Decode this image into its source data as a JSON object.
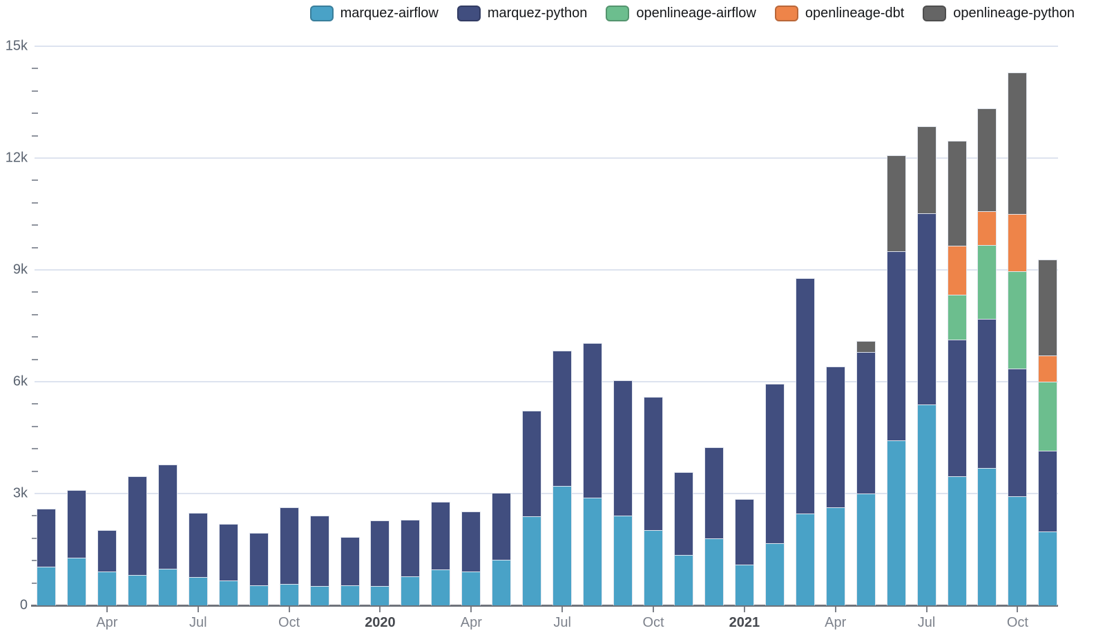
{
  "legend": {
    "items": [
      {
        "label": "marquez-airflow",
        "color": "#49a2c7"
      },
      {
        "label": "marquez-python",
        "color": "#414e7f"
      },
      {
        "label": "openlineage-airflow",
        "color": "#6cbe8e"
      },
      {
        "label": "openlineage-dbt",
        "color": "#ee8449"
      },
      {
        "label": "openlineage-python",
        "color": "#656565"
      }
    ]
  },
  "y_axis": {
    "labels": [
      {
        "text": "15k",
        "value": 15000
      },
      {
        "text": "12k",
        "value": 12000
      },
      {
        "text": "9k",
        "value": 9000
      },
      {
        "text": "6k",
        "value": 6000
      },
      {
        "text": "3k",
        "value": 3000
      },
      {
        "text": "0",
        "value": 0
      }
    ],
    "major_step": 3000,
    "minor_step": 600
  },
  "x_axis": {
    "ticks": [
      {
        "index": 2,
        "label": "Apr",
        "bold": false
      },
      {
        "index": 5,
        "label": "Jul",
        "bold": false
      },
      {
        "index": 8,
        "label": "Oct",
        "bold": false
      },
      {
        "index": 11,
        "label": "2020",
        "bold": true
      },
      {
        "index": 14,
        "label": "Apr",
        "bold": false
      },
      {
        "index": 17,
        "label": "Jul",
        "bold": false
      },
      {
        "index": 20,
        "label": "Oct",
        "bold": false
      },
      {
        "index": 23,
        "label": "2021",
        "bold": true
      },
      {
        "index": 26,
        "label": "Apr",
        "bold": false
      },
      {
        "index": 29,
        "label": "Jul",
        "bold": false
      },
      {
        "index": 32,
        "label": "Oct",
        "bold": false
      }
    ]
  },
  "chart_data": {
    "type": "bar",
    "stacked": true,
    "grid": true,
    "legend_position": "top-right",
    "ylim": [
      0,
      15000
    ],
    "categories": [
      "Feb 2019",
      "Mar 2019",
      "Apr 2019",
      "May 2019",
      "Jun 2019",
      "Jul 2019",
      "Aug 2019",
      "Sep 2019",
      "Oct 2019",
      "Nov 2019",
      "Dec 2019",
      "Jan 2020",
      "Feb 2020",
      "Mar 2020",
      "Apr 2020",
      "May 2020",
      "Jun 2020",
      "Jul 2020",
      "Aug 2020",
      "Sep 2020",
      "Oct 2020",
      "Nov 2020",
      "Dec 2020",
      "Jan 2021",
      "Feb 2021",
      "Mar 2021",
      "Apr 2021",
      "May 2021",
      "Jun 2021",
      "Jul 2021",
      "Aug 2021",
      "Sep 2021",
      "Oct 2021",
      "Nov 2021"
    ],
    "series": [
      {
        "name": "marquez-airflow",
        "color": "#49a2c7",
        "values": [
          1030,
          1280,
          900,
          810,
          980,
          750,
          670,
          530,
          570,
          510,
          530,
          510,
          780,
          960,
          900,
          1220,
          2380,
          3200,
          2880,
          2410,
          2010,
          1350,
          1800,
          1100,
          1660,
          2460,
          2630,
          3000,
          4420,
          5390,
          3460,
          3680,
          2920,
          1990
        ]
      },
      {
        "name": "marquez-python",
        "color": "#414e7f",
        "values": [
          1570,
          1810,
          1110,
          2650,
          2800,
          1740,
          1510,
          1410,
          2060,
          1900,
          1300,
          1770,
          1510,
          1820,
          1620,
          1800,
          2840,
          3640,
          4160,
          3630,
          3590,
          2220,
          2450,
          1760,
          4280,
          6310,
          3780,
          3800,
          5080,
          5130,
          3670,
          4010,
          3440,
          2160
        ]
      },
      {
        "name": "openlineage-airflow",
        "color": "#6cbe8e",
        "values": [
          0,
          0,
          0,
          0,
          0,
          0,
          0,
          0,
          0,
          0,
          0,
          0,
          0,
          0,
          0,
          0,
          0,
          0,
          0,
          0,
          0,
          0,
          0,
          0,
          0,
          0,
          0,
          0,
          0,
          0,
          1210,
          1980,
          2610,
          1850
        ]
      },
      {
        "name": "openlineage-dbt",
        "color": "#ee8449",
        "values": [
          0,
          0,
          0,
          0,
          0,
          0,
          0,
          0,
          0,
          0,
          0,
          0,
          0,
          0,
          0,
          0,
          0,
          0,
          0,
          0,
          0,
          0,
          0,
          0,
          0,
          0,
          0,
          0,
          0,
          0,
          1310,
          900,
          1530,
          700
        ]
      },
      {
        "name": "openlineage-python",
        "color": "#656565",
        "values": [
          0,
          0,
          0,
          0,
          0,
          0,
          0,
          0,
          0,
          0,
          0,
          0,
          0,
          0,
          0,
          0,
          0,
          0,
          0,
          0,
          0,
          0,
          0,
          0,
          0,
          0,
          0,
          300,
          2570,
          2330,
          2820,
          2770,
          3800,
          2580
        ]
      }
    ]
  }
}
